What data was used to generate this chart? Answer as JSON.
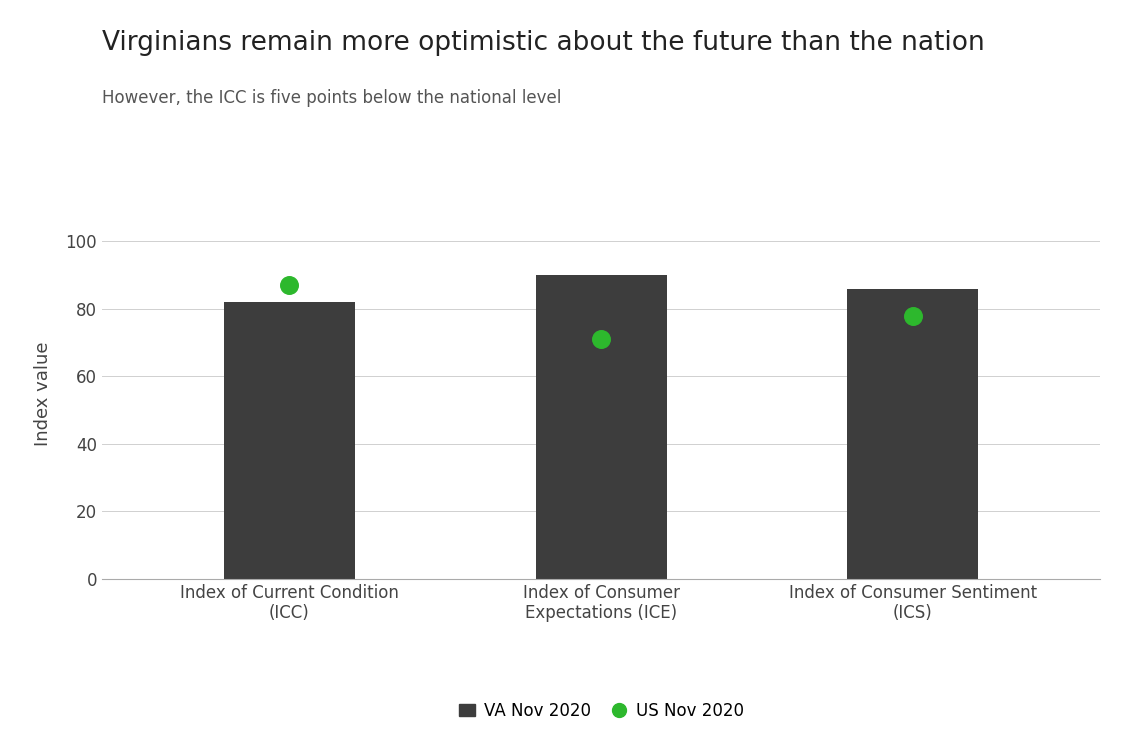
{
  "title": "Virginians remain more optimistic about the future than the nation",
  "subtitle": "However, the ICC is five points below the national level",
  "ylabel": "Index value",
  "categories": [
    "Index of Current Condition\n(ICC)",
    "Index of Consumer\nExpectations (ICE)",
    "Index of Consumer Sentiment\n(ICS)"
  ],
  "va_values": [
    82.0,
    90.0,
    86.0
  ],
  "us_values": [
    87.0,
    71.0,
    78.0
  ],
  "bar_color": "#3d3d3d",
  "dot_color": "#2db82d",
  "ylim": [
    0,
    110
  ],
  "yticks": [
    0,
    20,
    40,
    60,
    80,
    100
  ],
  "legend_va_label": "VA Nov 2020",
  "legend_us_label": "US Nov 2020",
  "background_color": "#ffffff",
  "title_fontsize": 19,
  "subtitle_fontsize": 12,
  "ylabel_fontsize": 13,
  "tick_fontsize": 12,
  "legend_fontsize": 12,
  "bar_width": 0.42,
  "dot_size": 160
}
